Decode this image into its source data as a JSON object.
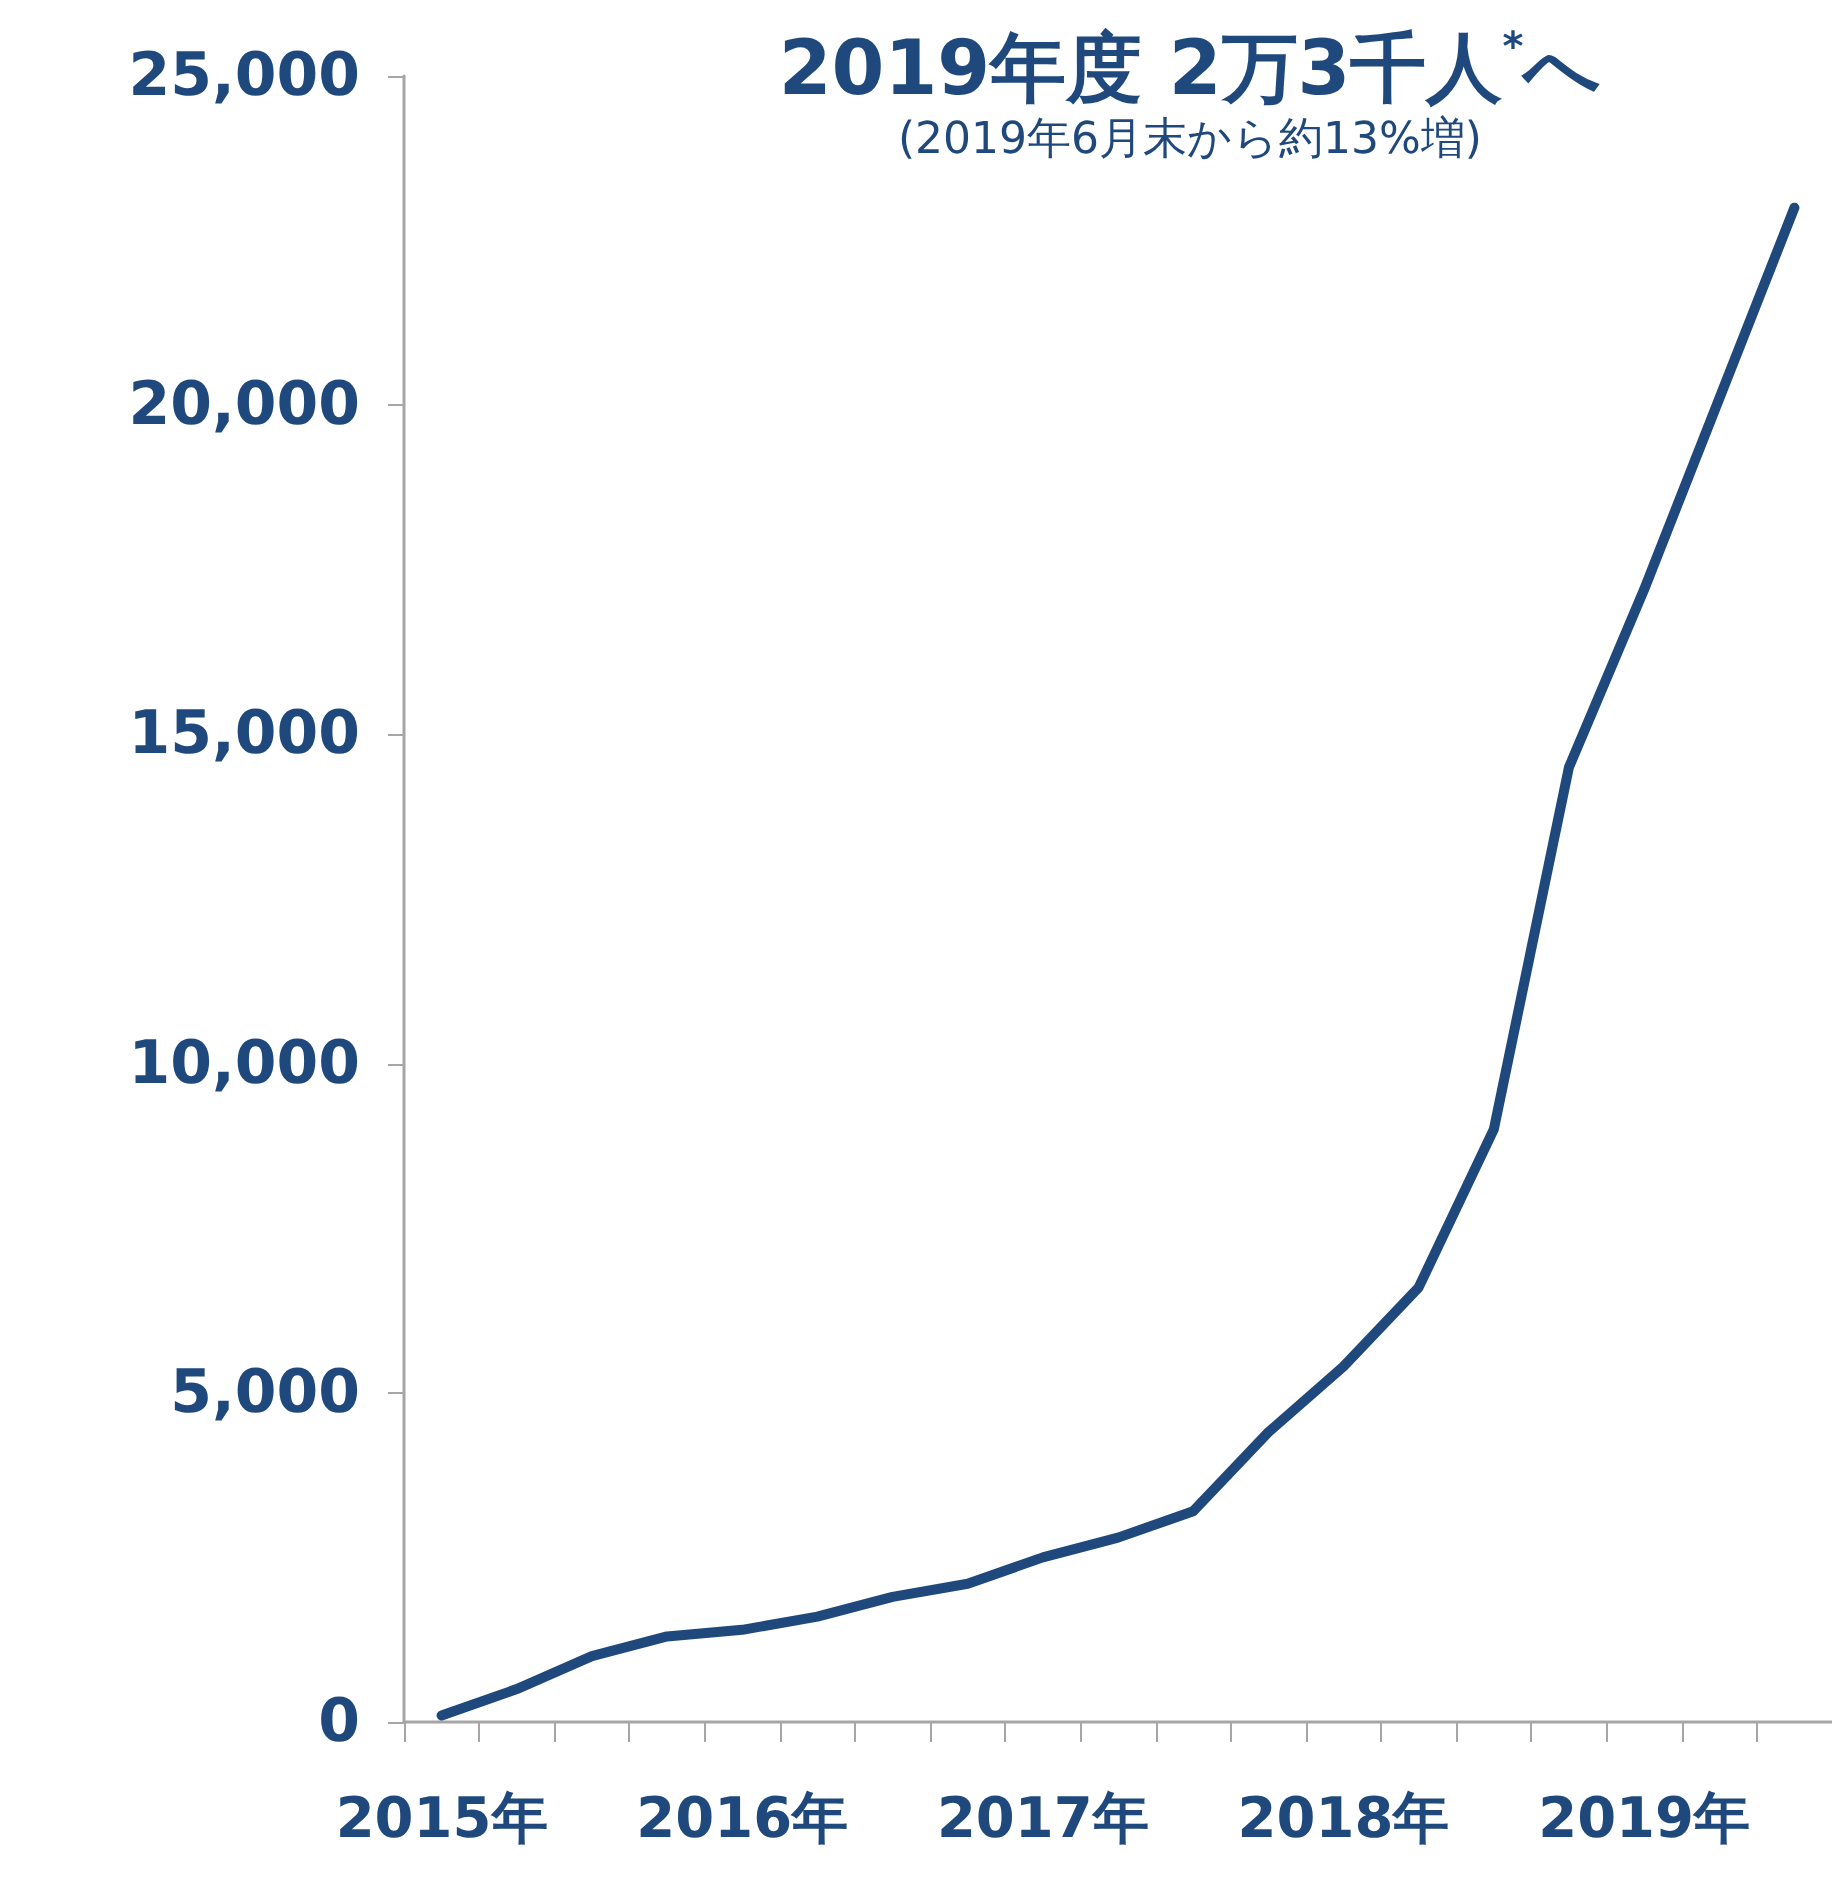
{
  "chart_data": {
    "type": "line",
    "title": "2019年度 2万3千人$^{*}$へ",
    "subtitle": "(2019年6月末から約13%増)",
    "categories": [
      "2015年",
      null,
      null,
      null,
      "2016年",
      null,
      null,
      null,
      "2017年",
      null,
      null,
      null,
      "2018年",
      null,
      null,
      null,
      "2019年",
      null,
      null
    ],
    "series": [
      {
        "color": "#1f497d",
        "values": [
          100,
          500,
          1000,
          1300,
          1400,
          1600,
          1900,
          2100,
          2500,
          2800,
          3200,
          4400,
          5400,
          6600,
          9000,
          14500,
          17200,
          20100,
          23000
        ]
      }
    ],
    "ylim": [
      0,
      25000
    ],
    "yticks": [
      0,
      {
        "value": 5000,
        "label": "5,000"
      },
      {
        "value": 10000,
        "label": "10,000"
      },
      {
        "value": 15000,
        "label": "15,000"
      },
      {
        "value": 20000,
        "label": "20,000"
      },
      {
        "value": 25000,
        "label": "25,000"
      }
    ],
    "grid": false,
    "marker": "none",
    "line_style": "solid"
  }
}
